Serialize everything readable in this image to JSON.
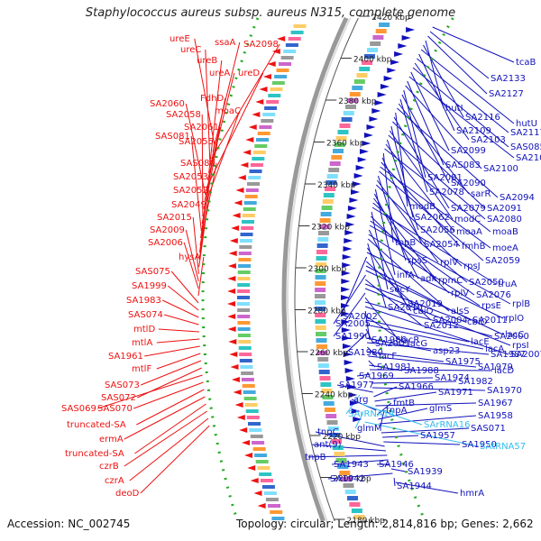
{
  "title": "Staphylococcus aureus subsp. aureus N315, complete genome",
  "accession": "Accession: NC_002745",
  "topology": "Topology: circular; Length: 2,814,816 bp; Genes: 2,662",
  "colors": {
    "left_genes": "#ee1111",
    "right_genes": "#1111bb",
    "rna_genes": "#33bbee",
    "ticks": "#333333",
    "backbone": "#888888",
    "green_dots": "#22aa22"
  },
  "ticks": [
    "2420 kbp",
    "2400 kbp",
    "2380 kbp",
    "2360 kbp",
    "2340 kbp",
    "2320 kbp",
    "2300 kbp",
    "2280 kbp",
    "2260 kbp",
    "2240 kbp",
    "2220 kbp",
    "2200 kbp",
    "2180 kbp"
  ],
  "left_genes": [
    "ureE",
    "ssaA",
    "SA2098",
    "ureC",
    "ureB",
    "ureA",
    "ureD",
    "SA2060",
    "FdhD",
    "moaC",
    "SA2058",
    "SA2061",
    "SAS081",
    "SA2055",
    "SAS080",
    "SA2053",
    "SA2052",
    "SA2049",
    "SA2015",
    "SA2009",
    "SA2006",
    "hysA",
    "SAS075",
    "SA1999",
    "SA1983",
    "SAS074",
    "mtlD",
    "mtlA",
    "SA1961",
    "mtlF",
    "SAS073",
    "SAS072",
    "SAS069",
    "SAS070",
    "truncated-SA",
    "ermA",
    "truncated-SA",
    "czrB",
    "czrA",
    "deoD"
  ],
  "right_genes": [
    "tcaB",
    "SA2133",
    "SA2127",
    "hutI",
    "SA2116",
    "hutU",
    "SA2109",
    "SA2117",
    "SA2103",
    "SAS085",
    "SA2099",
    "SA2104",
    "SAS083",
    "SA2100",
    "SA2081",
    "SA2090",
    "SA2078",
    "sarR",
    "SA2094",
    "modB",
    "SA2079",
    "SA2091",
    "SA2062",
    "modC",
    "SA2080",
    "SA2056",
    "moaA",
    "moaB",
    "topB",
    "SA2054",
    "fmhB",
    "moeA",
    "SA2059",
    "rpsS",
    "rplV",
    "rpsJ",
    "infA",
    "adk",
    "rpmC",
    "SA2050",
    "truA",
    "secY",
    "rplV",
    "SA2076",
    "rplB",
    "SA2019",
    "rpsE",
    "alsS",
    "SA2010",
    "cbiO",
    "rplO",
    "SA2002",
    "SA2004",
    "SA2011",
    "lacC",
    "SA2005",
    "SA2012",
    "cbiO",
    "rpsI",
    "SA1990",
    "lacR",
    "SA2000",
    "SA2007",
    "SA1986",
    "lacG",
    "lacE",
    "lacA",
    "SA2001",
    "SA1980",
    "asp23",
    "SA1987",
    "lacF",
    "SA1975",
    "SA1979",
    "SA1981",
    "SA1988",
    "lacD",
    "SA1969",
    "SA1974",
    "SA1982",
    "SA1970",
    "SA1977",
    "SA1966",
    "SA1971",
    "SA1967",
    "arg",
    "fmtB",
    "glmS",
    "SA1958",
    "tnpA",
    "SAS071",
    "SA1957",
    "SA1950",
    "tnpC",
    "ant(9)",
    "tnpB",
    "SA1943",
    "SA1946",
    "SA1939",
    "SA1942",
    "SA1944",
    "hmrA"
  ],
  "rna_genes": [
    "SArRNA14",
    "SArRNA16",
    "glmM",
    "SAtRNA57"
  ]
}
